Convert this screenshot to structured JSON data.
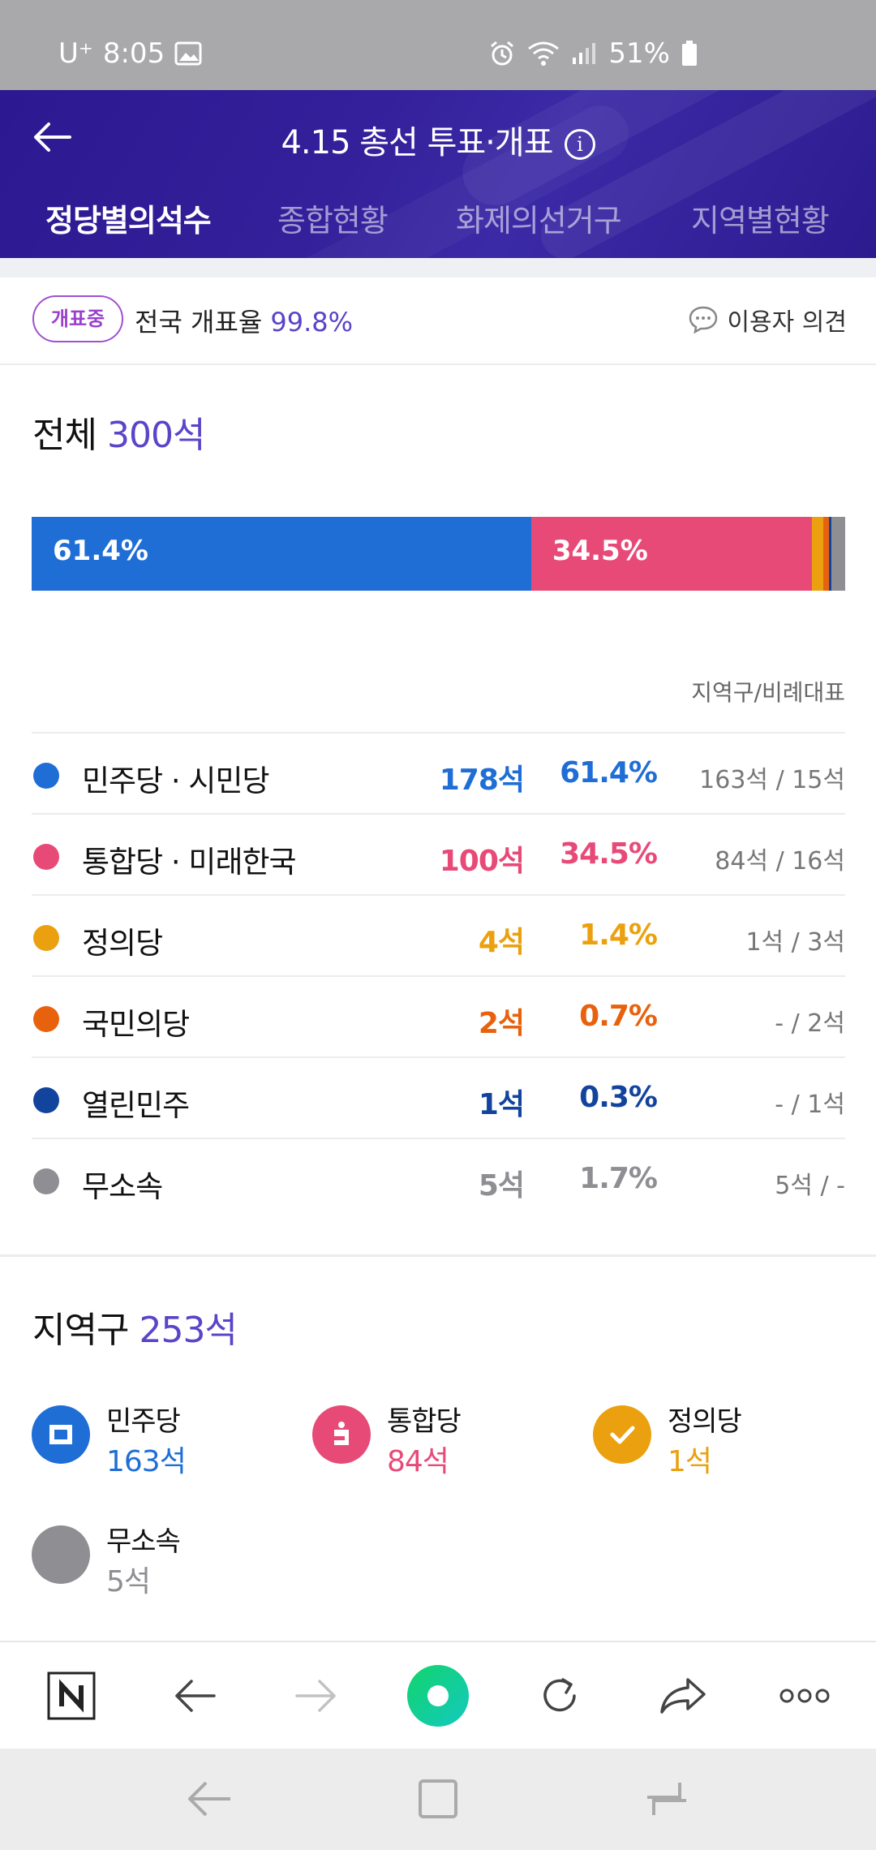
{
  "status_bar": {
    "carrier": "U⁺",
    "time": "8:05",
    "battery": "51%"
  },
  "header": {
    "title": "4.15 총선 투표·개표",
    "tabs": [
      "정당별의석수",
      "종합현황",
      "화제의선거구",
      "지역별현황"
    ]
  },
  "counting": {
    "badge": "개표중",
    "label": "전국 개표율",
    "rate": "99.8%",
    "opinion": "이용자 의견"
  },
  "total": {
    "title": "전체",
    "seats": "300석",
    "bar": [
      {
        "label": "61.4%",
        "pct": 61.4,
        "color": "#1f6ed6"
      },
      {
        "label": "34.5%",
        "pct": 34.5,
        "color": "#e84a78"
      },
      {
        "label": "",
        "pct": 1.4,
        "color": "#eba10f"
      },
      {
        "label": "",
        "pct": 0.7,
        "color": "#e8620e"
      },
      {
        "label": "",
        "pct": 0.3,
        "color": "#13449d"
      },
      {
        "label": "",
        "pct": 1.7,
        "color": "#8e8e93"
      }
    ],
    "split_header": "지역구/비례대표",
    "parties": [
      {
        "name": "민주당 · 시민당",
        "seats": "178석",
        "pct": "61.4%",
        "split": "163석 / 15석",
        "color": "#1f6ed6"
      },
      {
        "name": "통합당 · 미래한국",
        "seats": "100석",
        "pct": "34.5%",
        "split": "84석 / 16석",
        "color": "#e84a78"
      },
      {
        "name": "정의당",
        "seats": "4석",
        "pct": "1.4%",
        "split": "1석 / 3석",
        "color": "#eba10f"
      },
      {
        "name": "국민의당",
        "seats": "2석",
        "pct": "0.7%",
        "split": "- / 2석",
        "color": "#e8620e"
      },
      {
        "name": "열린민주",
        "seats": "1석",
        "pct": "0.3%",
        "split": "- / 1석",
        "color": "#13449d"
      },
      {
        "name": "무소속",
        "seats": "5석",
        "pct": "1.7%",
        "split": "5석 / -",
        "color": "#8e8e93"
      }
    ]
  },
  "region": {
    "title": "지역구",
    "seats": "253석",
    "parties": [
      {
        "name": "민주당",
        "seats": "163석",
        "color": "#1f6ed6",
        "icon": "democratic-party-logo-icon"
      },
      {
        "name": "통합당",
        "seats": "84석",
        "color": "#e84a78",
        "icon": "united-party-logo-icon"
      },
      {
        "name": "정의당",
        "seats": "1석",
        "color": "#eba10f",
        "icon": "justice-party-logo-icon"
      },
      {
        "name": "무소속",
        "seats": "5석",
        "color": "#8e8e93",
        "icon": "independent-icon"
      }
    ]
  },
  "toolbar": {
    "items": [
      "naver-home-icon",
      "back-icon",
      "forward-icon",
      "green-dot-icon",
      "refresh-icon",
      "share-icon",
      "more-icon"
    ]
  }
}
